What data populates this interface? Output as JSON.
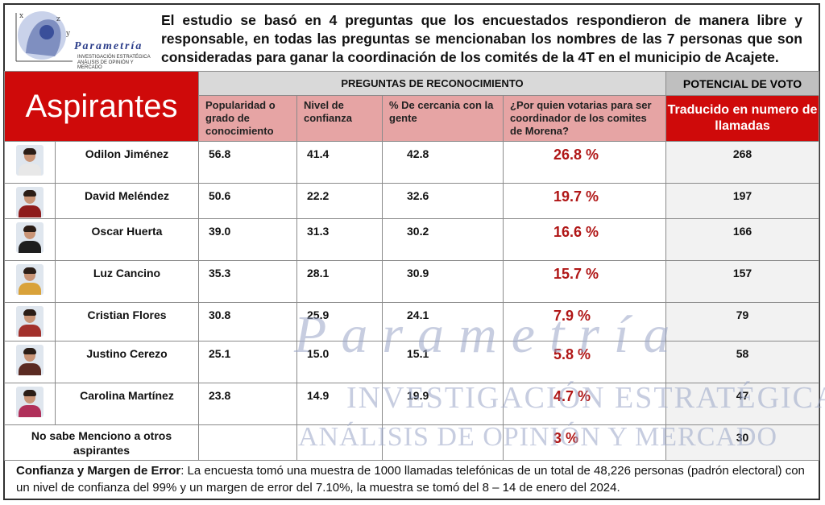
{
  "logo": {
    "brand": "Parametría",
    "tagline1": "Investigación estratégica",
    "tagline2": "Análisis de opinión y mercado"
  },
  "intro": "El estudio se basó en 4 preguntas que los encuestados respondieron de manera libre y responsable, en todas las preguntas se mencionaban los nombres de las 7 personas que son consideradas para ganar la coordinación de los comités de la 4T en el municipio de Acajete.",
  "table": {
    "title": "Aspirantes",
    "group_header": "PREGUNTAS DE RECONOCIMIENTO",
    "potential_header": "POTENCIAL DE VOTO",
    "questions": [
      "Popularidad o grado de conocimiento",
      "Nivel de confianza",
      "% De cercania con la gente",
      "¿Por quien votarias para ser coordinador de los comites de Morena?"
    ],
    "translated_header": "Traducido en numero de llamadas",
    "rows": [
      {
        "name": "Odilon Jiménez",
        "pop": "56.8",
        "conf": "41.4",
        "cerc": "42.8",
        "voto": "26.8 %",
        "calls": "268",
        "shirt": "#e8e8e8"
      },
      {
        "name": "David Meléndez",
        "pop": "50.6",
        "conf": "22.2",
        "cerc": "32.6",
        "voto": "19.7 %",
        "calls": "197",
        "shirt": "#8e1c1c"
      },
      {
        "name": "Oscar Huerta",
        "pop": "39.0",
        "conf": "31.3",
        "cerc": "30.2",
        "voto": "16.6 %",
        "calls": "166",
        "shirt": "#1e1e1e"
      },
      {
        "name": "Luz Cancino",
        "pop": "35.3",
        "conf": "28.1",
        "cerc": "30.9",
        "voto": "15.7 %",
        "calls": "157",
        "shirt": "#d9a23a"
      },
      {
        "name": "Cristian Flores",
        "pop": "30.8",
        "conf": "25.9",
        "cerc": "24.1",
        "voto": "7.9 %",
        "calls": "79",
        "shirt": "#a2312c"
      },
      {
        "name": "Justino Cerezo",
        "pop": "25.1",
        "conf": "15.0",
        "cerc": "15.1",
        "voto": "5.8 %",
        "calls": "58",
        "shirt": "#5a2a22"
      },
      {
        "name": "Carolina Martínez",
        "pop": "23.8",
        "conf": "14.9",
        "cerc": "19.9",
        "voto": "4.7 %",
        "calls": "47",
        "shirt": "#b0305a"
      }
    ],
    "other": {
      "name": "No sabe Menciono a otros aspirantes",
      "voto": "3 %",
      "calls": "30"
    }
  },
  "footer": {
    "label": "Confianza y Margen de Error",
    "text": ": La encuesta tomó una muestra de 1000 llamadas telefónicas de un total de 48,226 personas (padrón electoral) con un nivel de confianza del 99% y un margen de error del 7.10%, la muestra se tomó del 8 – 14 de enero del 2024."
  },
  "watermark": {
    "brand": "Parametría",
    "line1": "Investigación estratégica",
    "line2": "Análisis de opinión y mercado"
  },
  "colors": {
    "accent_red": "#cf0a0a",
    "vote_red": "#b01616",
    "question_pink": "#e6a4a4",
    "header_gray": "#d9d9d9"
  }
}
